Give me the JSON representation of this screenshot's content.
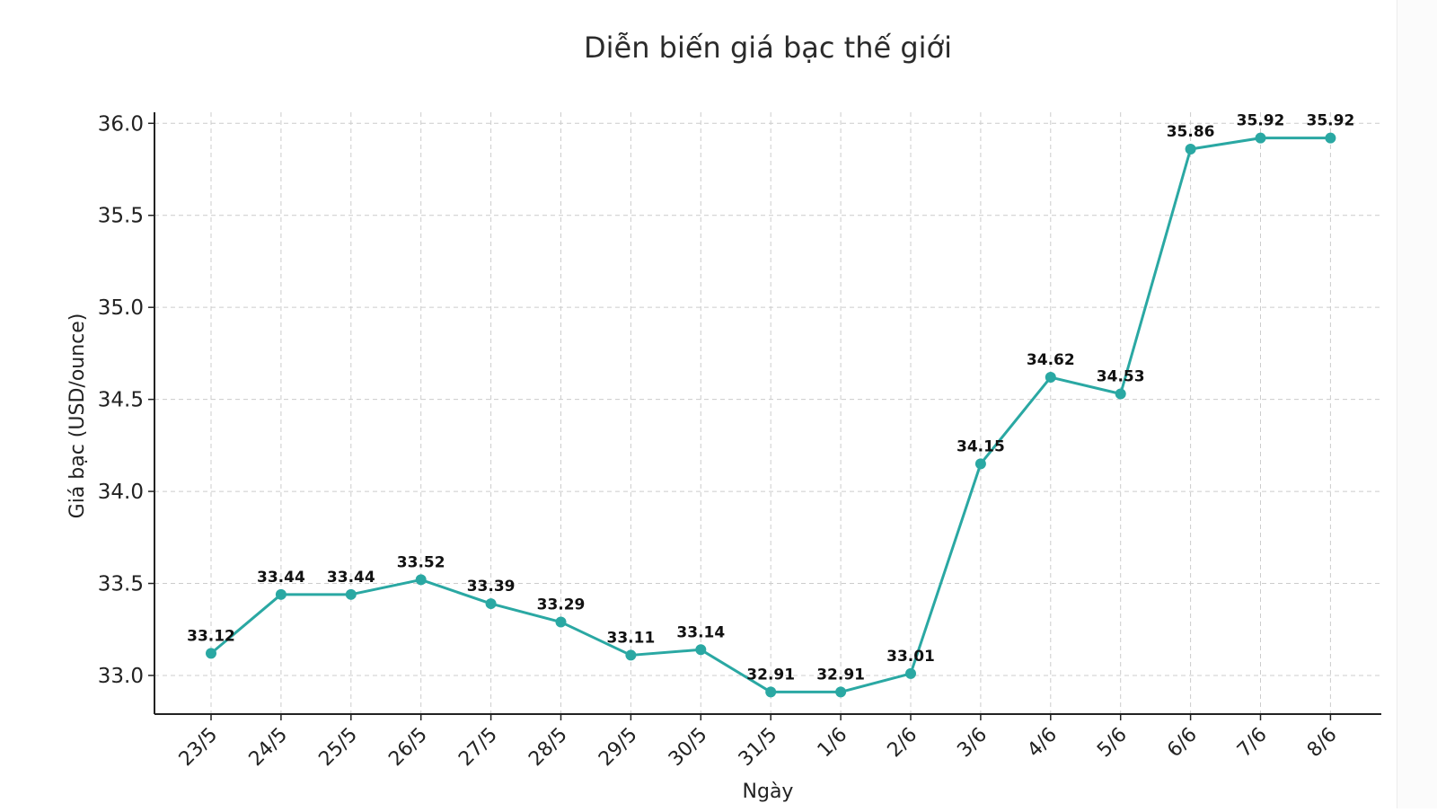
{
  "chart_data": {
    "type": "line",
    "title": "Diễn biến giá bạc thế giới",
    "xlabel": "Ngày",
    "ylabel": "Giá bạc (USD/ounce)",
    "categories": [
      "23/5",
      "24/5",
      "25/5",
      "26/5",
      "27/5",
      "28/5",
      "29/5",
      "30/5",
      "31/5",
      "1/6",
      "2/6",
      "3/6",
      "4/6",
      "5/6",
      "6/6",
      "7/6",
      "8/6"
    ],
    "series": [
      {
        "values": [
          33.12,
          33.44,
          33.44,
          33.52,
          33.39,
          33.29,
          33.11,
          33.14,
          32.91,
          32.91,
          33.01,
          34.15,
          34.62,
          34.53,
          35.86,
          35.92,
          35.92
        ],
        "data_labels": [
          "33.12",
          "33.44",
          "33.44",
          "33.52",
          "33.39",
          "33.29",
          "33.11",
          "33.14",
          "32.91",
          "32.91",
          "33.01",
          "34.15",
          "34.62",
          "34.53",
          "35.86",
          "35.92",
          "35.92"
        ]
      }
    ],
    "y_ticks": [
      "33.0",
      "33.5",
      "34.0",
      "34.5",
      "35.0",
      "35.5",
      "36.0"
    ],
    "ylim": [
      32.79,
      36.06
    ],
    "grid": true,
    "grid_style": "dashed",
    "line_color": "#2aa8a3",
    "legend": "none"
  }
}
